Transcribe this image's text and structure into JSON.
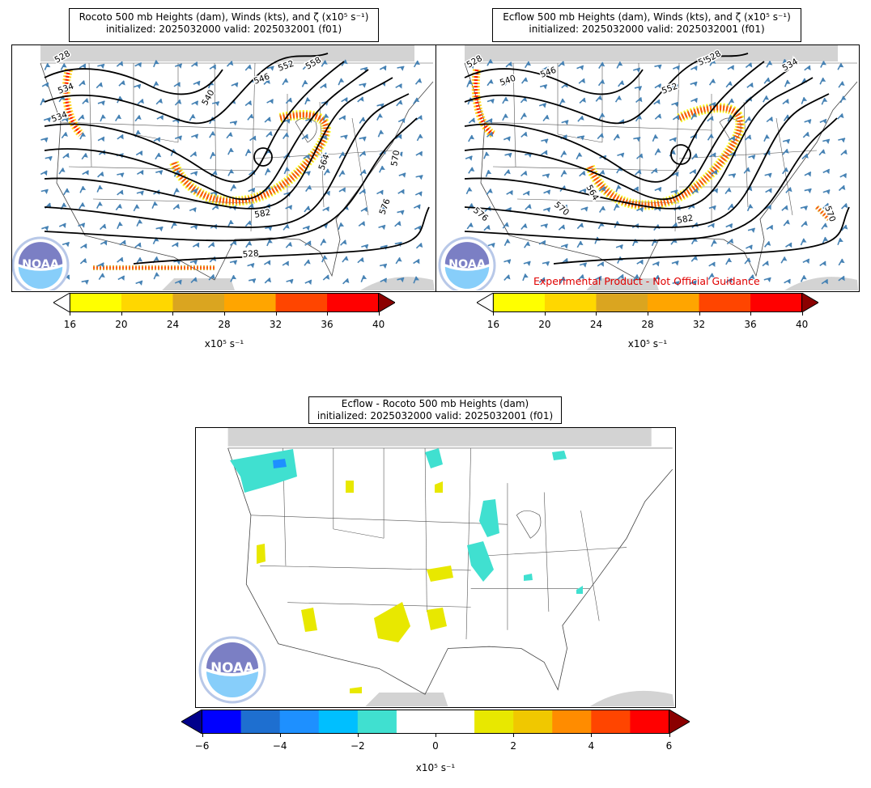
{
  "panels": {
    "rocoto": {
      "title_line1": "Rocoto 500 mb Heights (dam), Winds (kts), and ζ (x10⁵ s⁻¹)",
      "title_line2": "initialized: 2025032000 valid: 2025032001 (f01)",
      "height_labels": [
        "528",
        "534",
        "540",
        "546",
        "552",
        "558",
        "564",
        "570",
        "576",
        "582",
        "528",
        "534"
      ],
      "logo_text": "NOAA"
    },
    "ecflow": {
      "title_line1": "Ecflow 500 mb Heights (dam), Winds (kts), and ζ (x10⁵ s⁻¹)",
      "title_line2": "initialized: 2025032000 valid: 2025032001 (f01)",
      "height_labels": [
        "528",
        "540",
        "546",
        "552",
        "558",
        "564",
        "570",
        "576",
        "582",
        "528",
        "534",
        "570"
      ],
      "experimental_note": "Experimental Product - Not Official Guidance",
      "logo_text": "NOAA"
    },
    "diff": {
      "title_line1": "Ecflow - Rocoto 500 mb Heights (dam)",
      "title_line2": "initialized: 2025032000 valid: 2025032001 (f01)",
      "logo_text": "NOAA"
    }
  },
  "colorbars": {
    "vorticity": {
      "ticks": [
        "16",
        "20",
        "24",
        "28",
        "32",
        "36",
        "40"
      ],
      "colors": [
        "#ffff00",
        "#ffd700",
        "#daa520",
        "#ffa500",
        "#ff4500",
        "#ff0000"
      ],
      "under_color": "#ffffff",
      "over_color": "#8b0000",
      "label": "x10⁵ s⁻¹"
    },
    "difference": {
      "ticks": [
        "−6",
        "−4",
        "−2",
        "0",
        "2",
        "4",
        "6"
      ],
      "colors": [
        "#0000ff",
        "#1e6fd0",
        "#1e90ff",
        "#00bfff",
        "#40e0d0",
        "#ffffff",
        "#ffffff",
        "#e8e800",
        "#f0c800",
        "#ff8c00",
        "#ff4500",
        "#ff0000"
      ],
      "under_color": "#00008b",
      "over_color": "#8b0000",
      "label": "x10⁵ s⁻¹"
    }
  },
  "colors": {
    "land_mask": "#d3d3d3",
    "wind_barb": "#4682b4",
    "contour": "#000000",
    "noaa_light": "#87cefa",
    "noaa_dark": "#7b7fc4"
  }
}
